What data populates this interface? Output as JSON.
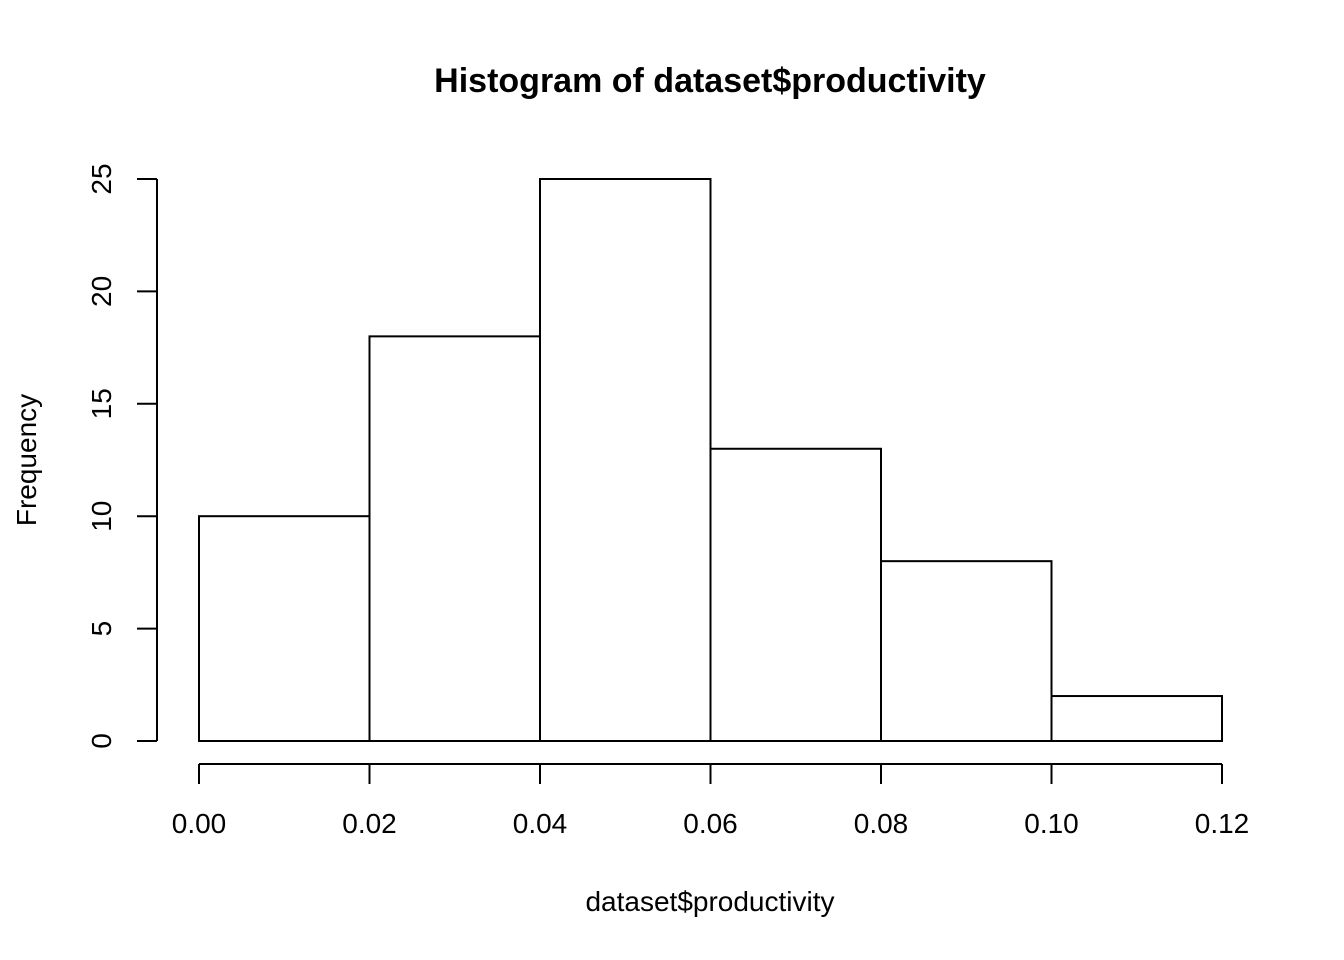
{
  "chart_data": {
    "type": "bar",
    "subtype": "histogram",
    "title": "Histogram of dataset$productivity",
    "xlabel": "dataset$productivity",
    "ylabel": "Frequency",
    "bins": [
      {
        "start": 0.0,
        "end": 0.02,
        "count": 10
      },
      {
        "start": 0.02,
        "end": 0.04,
        "count": 18
      },
      {
        "start": 0.04,
        "end": 0.06,
        "count": 25
      },
      {
        "start": 0.06,
        "end": 0.08,
        "count": 13
      },
      {
        "start": 0.08,
        "end": 0.1,
        "count": 8
      },
      {
        "start": 0.1,
        "end": 0.12,
        "count": 2
      }
    ],
    "xlim": [
      0,
      0.12
    ],
    "ylim": [
      0,
      25
    ],
    "x_ticks": [
      0.0,
      0.02,
      0.04,
      0.06,
      0.08,
      0.1,
      0.12
    ],
    "x_tick_labels": [
      "0.00",
      "0.02",
      "0.04",
      "0.06",
      "0.08",
      "0.10",
      "0.12"
    ],
    "y_ticks": [
      0,
      5,
      10,
      15,
      20,
      25
    ],
    "y_tick_labels": [
      "0",
      "5",
      "10",
      "15",
      "20",
      "25"
    ],
    "grid": false,
    "bar_fill": "#ffffff",
    "bar_stroke": "#000000"
  }
}
